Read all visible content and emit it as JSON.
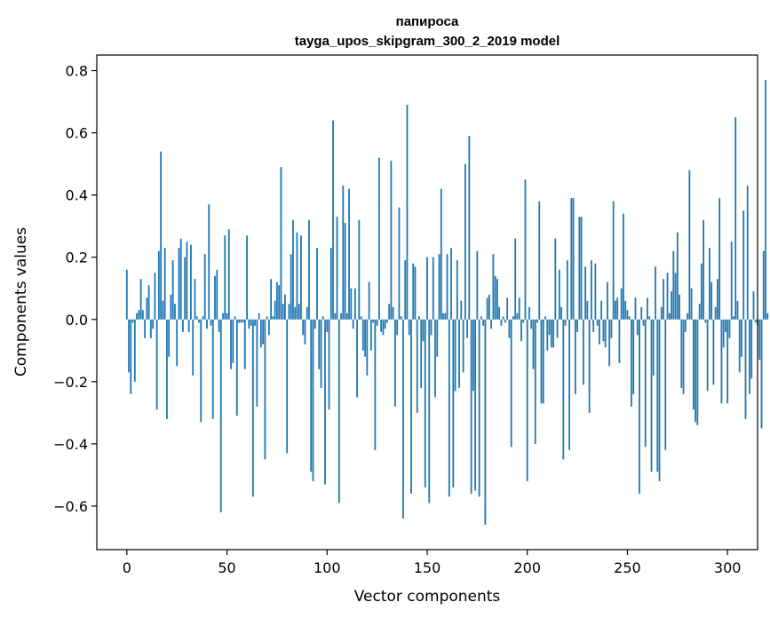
{
  "chart_data": {
    "type": "bar",
    "title_line1": "папироса",
    "title_line2": "tayga_upos_skipgram_300_2_2019 model",
    "xlabel": "Vector components",
    "ylabel": "Components values",
    "xlim": [
      -15,
      315
    ],
    "ylim": [
      -0.74,
      0.85
    ],
    "xticks": [
      0,
      50,
      100,
      150,
      200,
      250,
      300
    ],
    "yticks": [
      -0.6,
      -0.4,
      -0.2,
      0.0,
      0.2,
      0.4,
      0.6,
      0.8
    ],
    "ytick_labels": [
      "−0.6",
      "−0.4",
      "−0.2",
      "0.0",
      "0.2",
      "0.4",
      "0.6",
      "0.8"
    ],
    "grid": false,
    "bar_color": "#1f77b4",
    "values": [
      0.16,
      -0.17,
      -0.24,
      -0.01,
      -0.2,
      0.02,
      0.03,
      0.13,
      0.03,
      -0.06,
      0.07,
      0.11,
      -0.06,
      -0.03,
      0.15,
      -0.29,
      0.22,
      0.54,
      0.06,
      0.23,
      -0.32,
      -0.12,
      0.08,
      0.19,
      0.05,
      -0.15,
      0.23,
      0.26,
      -0.04,
      0.2,
      0.25,
      -0.04,
      0.24,
      -0.18,
      0.13,
      0.01,
      -0.01,
      -0.33,
      0.01,
      0.21,
      -0.03,
      0.37,
      -0.02,
      -0.32,
      0.14,
      0.16,
      -0.04,
      -0.62,
      0.02,
      0.27,
      0.02,
      0.29,
      -0.16,
      -0.14,
      0.01,
      -0.31,
      -0.01,
      -0.01,
      -0.01,
      -0.16,
      0.27,
      -0.03,
      -0.02,
      -0.57,
      -0.02,
      -0.28,
      0.02,
      -0.09,
      -0.08,
      -0.45,
      0.01,
      -0.05,
      0.13,
      0.01,
      0.06,
      0.12,
      0.11,
      0.49,
      0.05,
      0.08,
      -0.43,
      0.05,
      0.21,
      0.32,
      0.04,
      0.28,
      0.05,
      0.27,
      -0.05,
      -0.08,
      0.04,
      0.32,
      -0.49,
      -0.52,
      -0.03,
      0.23,
      -0.16,
      -0.22,
      0.01,
      -0.53,
      -0.04,
      -0.29,
      0.23,
      0.64,
      0.02,
      0.33,
      -0.59,
      0.02,
      0.43,
      0.31,
      0.02,
      0.42,
      0.1,
      -0.03,
      0.1,
      -0.25,
      0.32,
      0.01,
      -0.1,
      -0.12,
      -0.18,
      0.12,
      -0.1,
      -0.01,
      -0.42,
      -0.02,
      0.52,
      -0.04,
      -0.05,
      -0.03,
      -0.01,
      0.05,
      0.51,
      0.04,
      -0.28,
      -0.05,
      0.36,
      0.01,
      -0.64,
      0.19,
      0.69,
      -0.05,
      -0.56,
      0.18,
      0.17,
      -0.3,
      0.01,
      -0.22,
      -0.07,
      -0.54,
      0.2,
      -0.59,
      -0.05,
      0.2,
      -0.25,
      -0.12,
      0.21,
      0.42,
      0.02,
      0.02,
      0.21,
      -0.57,
      0.23,
      -0.54,
      -0.23,
      0.19,
      -0.22,
      0.06,
      -0.17,
      0.5,
      -0.06,
      0.59,
      -0.56,
      -0.23,
      -0.55,
      0.22,
      -0.57,
      0.01,
      -0.02,
      -0.66,
      0.07,
      0.08,
      -0.03,
      0.21,
      0.14,
      0.13,
      0.04,
      -0.02,
      0.01,
      -0.01,
      0.07,
      -0.06,
      -0.41,
      0.01,
      0.26,
      0.02,
      0.07,
      -0.07,
      -0.01,
      0.45,
      -0.52,
      0.04,
      -0.03,
      -0.16,
      -0.4,
      -0.01,
      0.38,
      -0.27,
      -0.27,
      0.01,
      -0.1,
      -0.05,
      -0.09,
      -0.09,
      0.26,
      -0.06,
      0.16,
      0.04,
      -0.45,
      -0.02,
      0.19,
      -0.42,
      0.39,
      0.39,
      -0.24,
      -0.04,
      0.33,
      0.33,
      -0.21,
      0.17,
      0.06,
      -0.3,
      0.19,
      -0.04,
      0.18,
      -0.02,
      -0.08,
      0.06,
      -0.07,
      -0.09,
      0.12,
      -0.15,
      -0.06,
      0.38,
      0.06,
      0.07,
      -0.14,
      0.1,
      0.34,
      0.06,
      0.03,
      0.01,
      -0.28,
      -0.24,
      0.07,
      -0.05,
      -0.56,
      0.04,
      -0.02,
      -0.41,
      0.07,
      0.01,
      -0.49,
      -0.18,
      0.17,
      -0.49,
      -0.52,
      0.04,
      0.13,
      -0.42,
      0.15,
      0.02,
      0.09,
      0.22,
      0.15,
      0.28,
      0.08,
      -0.22,
      -0.24,
      -0.04,
      0.02,
      0.48,
      0.1,
      -0.29,
      -0.33,
      -0.34,
      0.05,
      0.18,
      0.32,
      -0.01,
      -0.23,
      0.23,
      0.12,
      -0.21,
      0.04,
      0.13,
      0.39,
      -0.27,
      -0.09,
      -0.04,
      -0.27,
      -0.06,
      0.25,
      0.01,
      0.65,
      0.06,
      -0.17,
      -0.12,
      0.35,
      -0.32,
      0.43,
      -0.24,
      -0.19,
      0.09,
      -0.01,
      -0.02,
      -0.13,
      -0.35,
      0.22,
      0.77,
      0.02
    ]
  }
}
